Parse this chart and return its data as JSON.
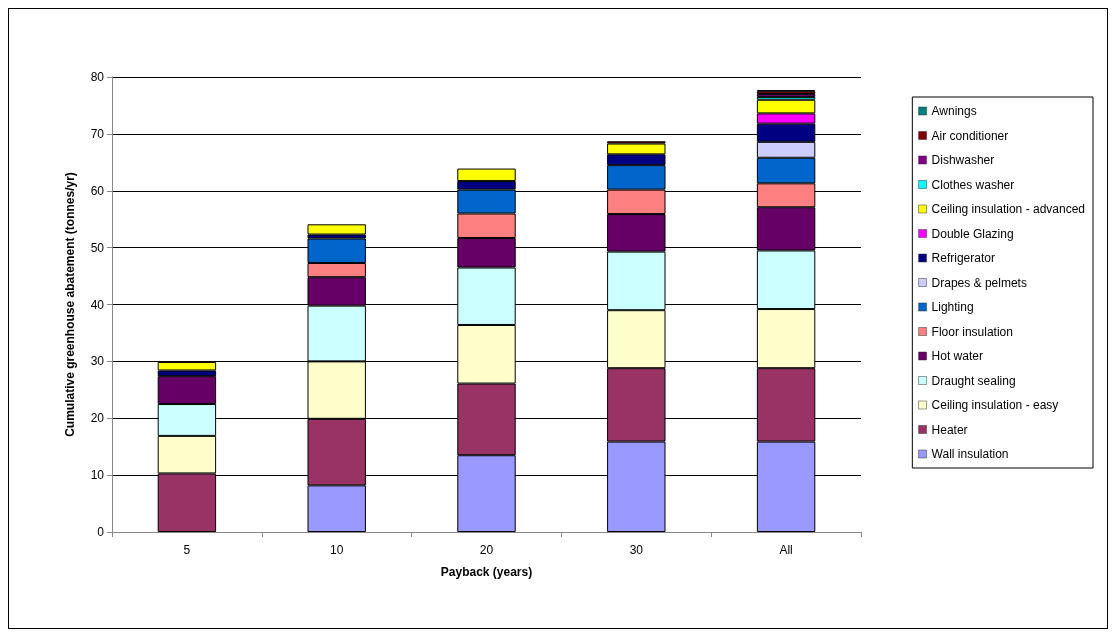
{
  "chart_data": {
    "type": "bar",
    "stacked": true,
    "xlabel": "Payback (years)",
    "ylabel": "Cumulative greenhouse abatement (tonnes/yr)",
    "categories": [
      "5",
      "10",
      "20",
      "30",
      "All"
    ],
    "ylim": [
      0,
      80
    ],
    "yticks": [
      0,
      10,
      20,
      30,
      40,
      50,
      60,
      70,
      80
    ],
    "grid": "y",
    "legend": "right",
    "series": [
      {
        "name": "Wall insulation",
        "color": "#9999ff",
        "values": [
          null,
          8.2,
          13.5,
          15.9,
          15.9
        ]
      },
      {
        "name": "Heater",
        "color": "#993366",
        "values": [
          10.3,
          11.7,
          12.6,
          12.9,
          12.9
        ]
      },
      {
        "name": "Ceiling insulation - easy",
        "color": "#ffffcc",
        "values": [
          6.6,
          10.1,
          10.3,
          10.2,
          10.4
        ]
      },
      {
        "name": "Draught sealing",
        "color": "#ccffff",
        "values": [
          5.6,
          9.8,
          10.1,
          10.3,
          10.3
        ]
      },
      {
        "name": "Hot water",
        "color": "#660066",
        "values": [
          4.9,
          5.0,
          5.2,
          6.6,
          7.6
        ]
      },
      {
        "name": "Floor insulation",
        "color": "#ff8080",
        "values": [
          null,
          2.5,
          4.3,
          4.3,
          4.2
        ]
      },
      {
        "name": "Lighting",
        "color": "#0066cc",
        "values": [
          null,
          4.3,
          4.2,
          4.3,
          4.5
        ]
      },
      {
        "name": "Drapes & pelmets",
        "color": "#ccccff",
        "values": [
          null,
          null,
          null,
          null,
          2.8
        ]
      },
      {
        "name": "Refrigerator",
        "color": "#000080",
        "values": [
          1.0,
          0.7,
          1.5,
          1.9,
          3.2
        ]
      },
      {
        "name": "Double Glazing",
        "color": "#ff00ff",
        "values": [
          null,
          null,
          null,
          null,
          1.8
        ]
      },
      {
        "name": "Ceiling insulation - advanced",
        "color": "#ffff00",
        "values": [
          1.5,
          1.8,
          2.2,
          1.9,
          2.4
        ]
      },
      {
        "name": "Clothes washer",
        "color": "#00ffff",
        "values": [
          null,
          null,
          null,
          null,
          0.5
        ]
      },
      {
        "name": "Dishwasher",
        "color": "#800080",
        "values": [
          null,
          null,
          null,
          null,
          0.5
        ]
      },
      {
        "name": "Air conditioner",
        "color": "#800000",
        "values": [
          null,
          null,
          null,
          0.4,
          0.5
        ]
      },
      {
        "name": "Awnings",
        "color": "#008080",
        "values": [
          null,
          null,
          null,
          null,
          0.2
        ]
      }
    ]
  }
}
